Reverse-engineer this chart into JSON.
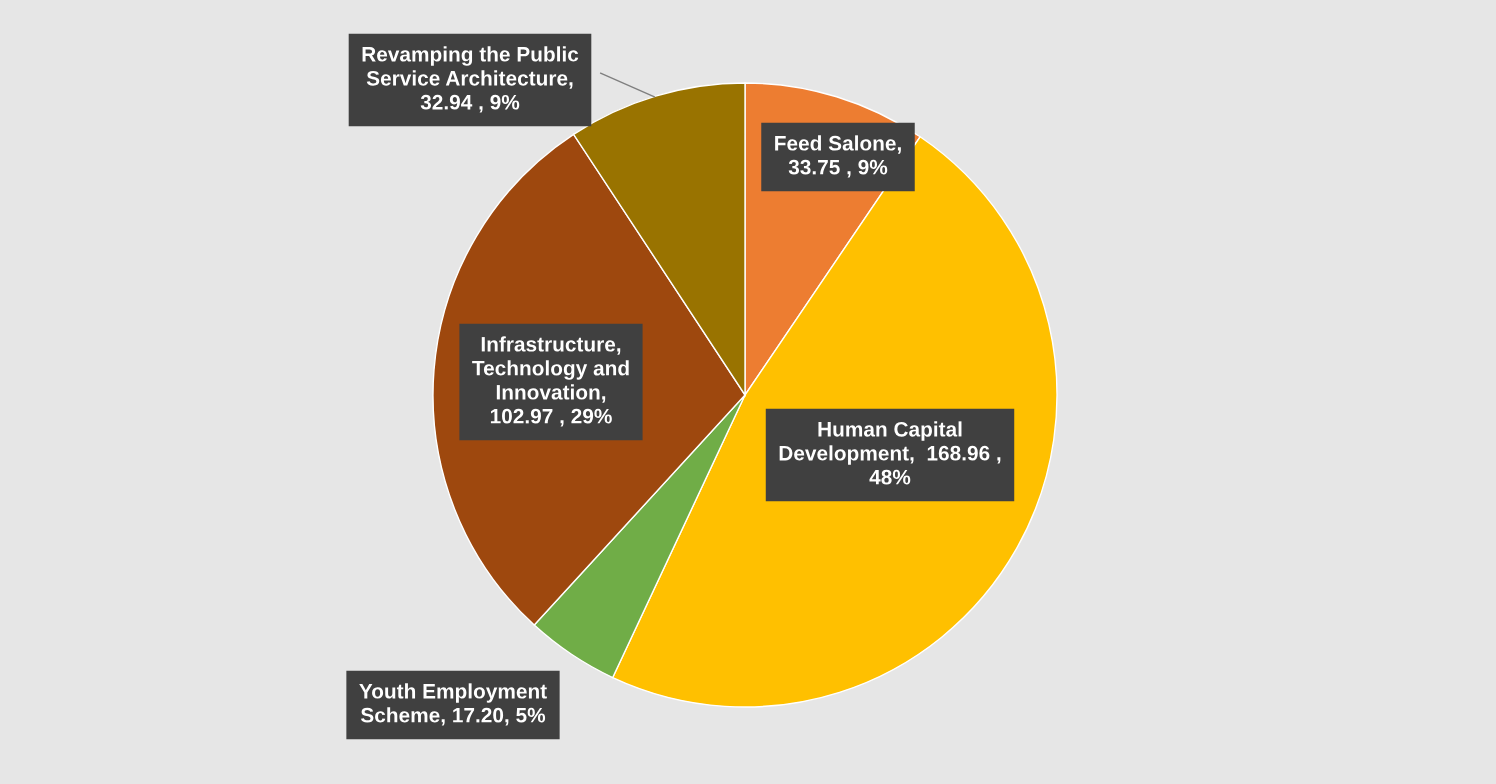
{
  "chart_data": {
    "type": "pie",
    "categories": [
      "Feed Salone",
      "Human Capital Development",
      "Youth Employment Scheme",
      "Infrastructure, Technology and Innovation",
      "Revamping the Public Service Architecture"
    ],
    "values": [
      33.75,
      168.96,
      17.2,
      102.97,
      32.94
    ],
    "colors": [
      "#ed7d31",
      "#ffc000",
      "#70ad47",
      "#9e480e",
      "#997300"
    ],
    "value_labels": [
      ", 33.75 , 9%",
      ",  168.96 , 48%",
      ", 17.20, 5%",
      ", 102.97 , 29%",
      ", 32.94 , 9%"
    ]
  }
}
